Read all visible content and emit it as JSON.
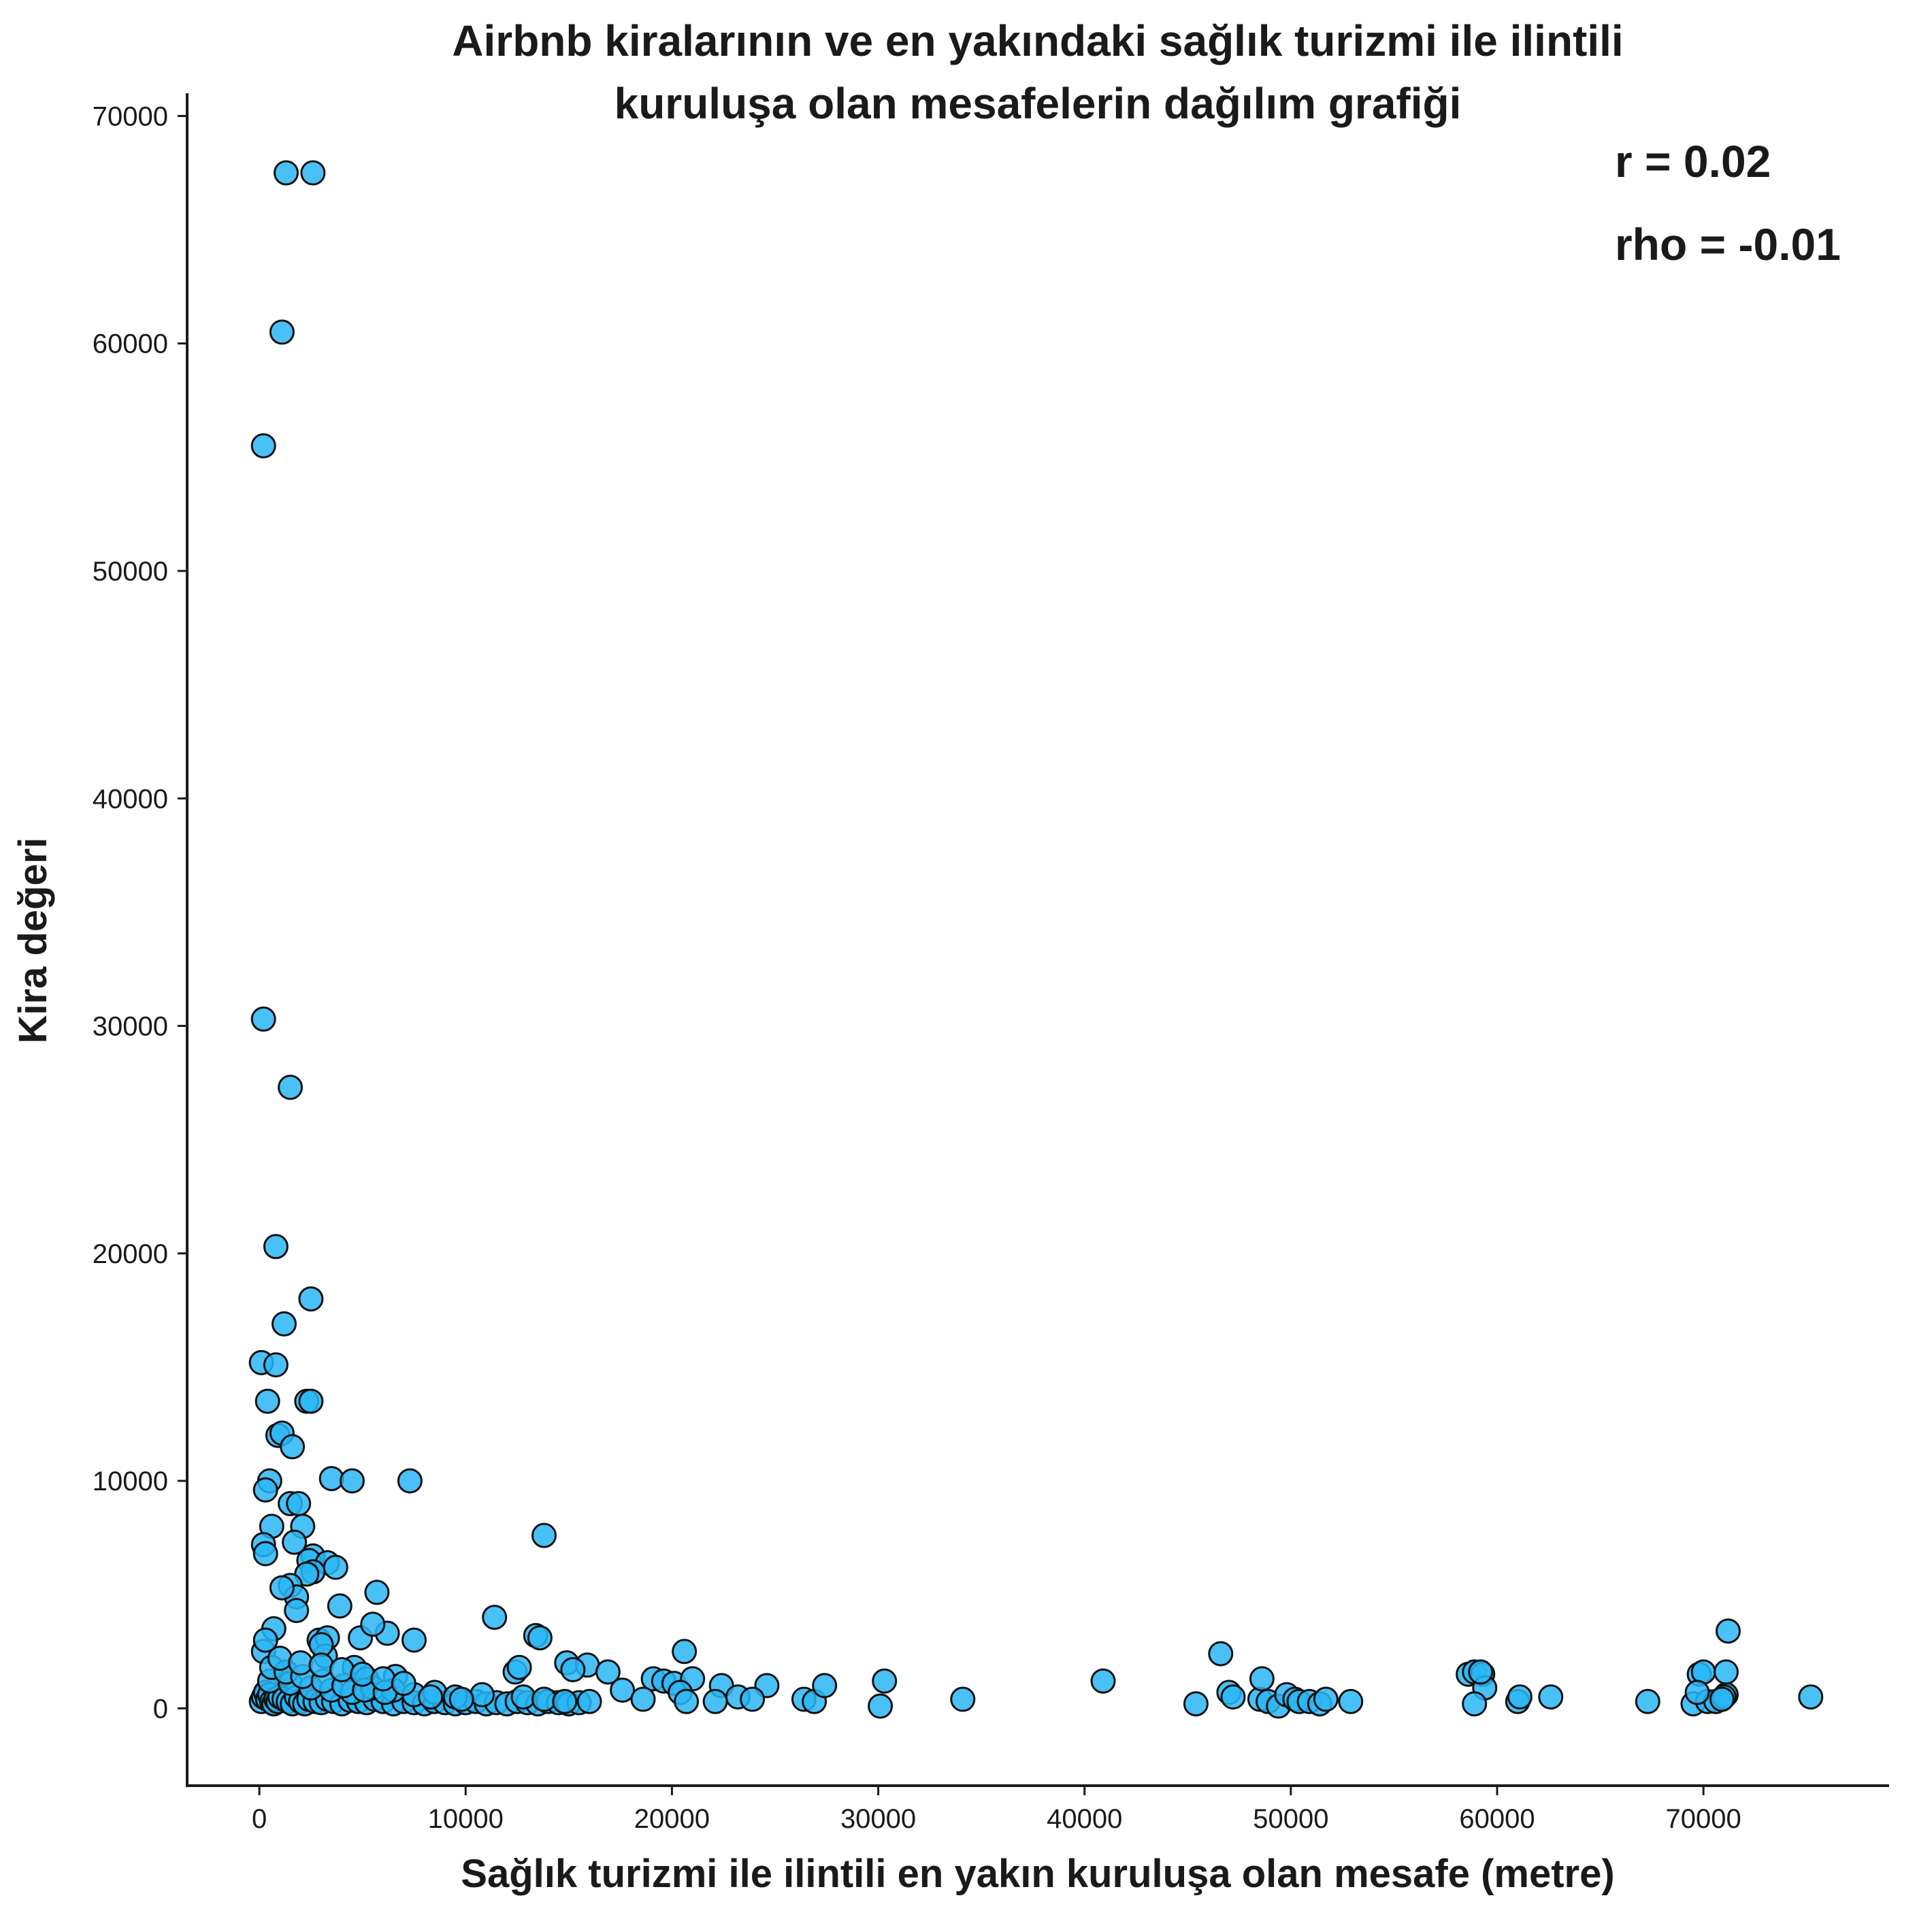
{
  "chart_data": {
    "type": "scatter",
    "title_lines": [
      "Airbnb kiralarının ve en yakındaki sağlık turizmi ile ilintili",
      "kuruluşa olan mesafelerin dağılım grafiği"
    ],
    "xlabel": "Sağlık turizmi ile ilintili en yakın kuruluşa olan mesafe (metre)",
    "ylabel": "Kira değeri",
    "xlim": [
      -3500,
      79000
    ],
    "ylim": [
      -3400,
      71000
    ],
    "xticks": [
      0,
      10000,
      20000,
      30000,
      40000,
      50000,
      60000,
      70000
    ],
    "yticks": [
      0,
      10000,
      20000,
      30000,
      40000,
      50000,
      60000,
      70000
    ],
    "xtick_labels": [
      "0",
      "10000",
      "20000",
      "30000",
      "40000",
      "50000",
      "60000",
      "70000"
    ],
    "ytick_labels": [
      "0",
      "10000",
      "20000",
      "30000",
      "40000",
      "50000",
      "60000",
      "70000"
    ],
    "annotations": [
      {
        "label": "r",
        "text": "r = 0.02"
      },
      {
        "label": "rho",
        "text": "rho = -0.01"
      }
    ],
    "grid": false,
    "legend": "none",
    "marker_color": "#29b6f6",
    "marker_edge_color": "#111111",
    "x": [
      1300,
      2600,
      1100,
      200,
      200,
      1500,
      800,
      2500,
      1200,
      100,
      800,
      400,
      2300,
      2500,
      900,
      1100,
      1600,
      500,
      300,
      3500,
      4500,
      7300,
      1500,
      1900,
      600,
      2100,
      1700,
      200,
      300,
      2600,
      2400,
      3300,
      3700,
      5700,
      2600,
      2300,
      1500,
      3900,
      1800,
      1100,
      4900,
      2900,
      6200,
      7500,
      3300,
      1800,
      700,
      200,
      300,
      1200,
      5500,
      3200,
      4600,
      6600,
      3000,
      5200,
      100,
      200,
      300,
      400,
      500,
      600,
      700,
      800,
      900,
      1000,
      1200,
      1400,
      1600,
      1800,
      2000,
      2200,
      2400,
      2700,
      3000,
      3300,
      3600,
      4000,
      4400,
      4800,
      5200,
      5600,
      6000,
      6500,
      7000,
      7500,
      8000,
      8500,
      9000,
      9500,
      10000,
      10500,
      11000,
      11500,
      12000,
      12500,
      13000,
      13500,
      14000,
      14500,
      15000,
      15500,
      16000,
      500,
      1500,
      2500,
      3500,
      4500,
      5500,
      6500,
      7500,
      8500,
      9500,
      10800,
      12800,
      13800,
      14800,
      600,
      1300,
      2100,
      3100,
      4100,
      5100,
      6100,
      8300,
      9800,
      1000,
      2000,
      3000,
      4000,
      5000,
      6000,
      7000,
      11400,
      13800,
      13400,
      13600,
      20600,
      14900,
      15900,
      16900,
      12400,
      12600,
      15200,
      19100,
      19600,
      20100,
      21000,
      22400,
      23200,
      24600,
      26400,
      26900,
      27400,
      17600,
      18600,
      20400,
      20700,
      22100,
      23900,
      30300,
      30100,
      34100,
      40900,
      46600,
      47000,
      47200,
      48500,
      48600,
      48900,
      49400,
      49800,
      50200,
      50400,
      50900,
      51400,
      51700,
      52900,
      45400,
      58600,
      58900,
      59300,
      59400,
      58900,
      59200,
      61000,
      61100,
      62600,
      67300,
      69500,
      69800,
      70000,
      70200,
      70600,
      71100,
      71200,
      71100,
      71000,
      69700,
      70900,
      75200
    ],
    "y": [
      67500,
      67500,
      60500,
      55500,
      30300,
      27300,
      20300,
      18000,
      16900,
      15200,
      15100,
      13500,
      13500,
      13500,
      12000,
      12100,
      11500,
      10000,
      9600,
      10100,
      10000,
      10000,
      9000,
      9000,
      8000,
      8000,
      7300,
      7200,
      6800,
      6700,
      6500,
      6400,
      6200,
      5100,
      6000,
      5900,
      5400,
      4500,
      4900,
      5300,
      3100,
      3000,
      3300,
      3000,
      3100,
      4300,
      3500,
      2500,
      3000,
      1500,
      3700,
      2300,
      1800,
      1400,
      2800,
      1300,
      300,
      500,
      700,
      400,
      600,
      300,
      200,
      400,
      300,
      500,
      400,
      300,
      200,
      500,
      300,
      200,
      400,
      300,
      250,
      400,
      300,
      200,
      350,
      300,
      250,
      400,
      300,
      200,
      300,
      250,
      200,
      300,
      250,
      200,
      250,
      300,
      200,
      250,
      200,
      300,
      250,
      200,
      300,
      250,
      200,
      250,
      300,
      1200,
      1100,
      900,
      800,
      700,
      900,
      800,
      600,
      700,
      500,
      600,
      500,
      400,
      300,
      1800,
      1600,
      1400,
      1200,
      1000,
      800,
      700,
      500,
      400,
      2200,
      2000,
      1900,
      1700,
      1500,
      1300,
      1100,
      4000,
      7600,
      3200,
      3100,
      2500,
      2000,
      1900,
      1600,
      1600,
      1800,
      1700,
      1300,
      1200,
      1100,
      1300,
      1000,
      500,
      1000,
      400,
      300,
      1000,
      800,
      400,
      700,
      300,
      300,
      400,
      1200,
      100,
      400,
      1200,
      2400,
      700,
      500,
      400,
      1300,
      300,
      100,
      600,
      400,
      300,
      300,
      200,
      400,
      300,
      200,
      1500,
      1600,
      1500,
      900,
      200,
      1600,
      300,
      500,
      500,
      300,
      200,
      1500,
      1600,
      300,
      300,
      600,
      3400,
      1600,
      500,
      700,
      400,
      500
    ]
  }
}
